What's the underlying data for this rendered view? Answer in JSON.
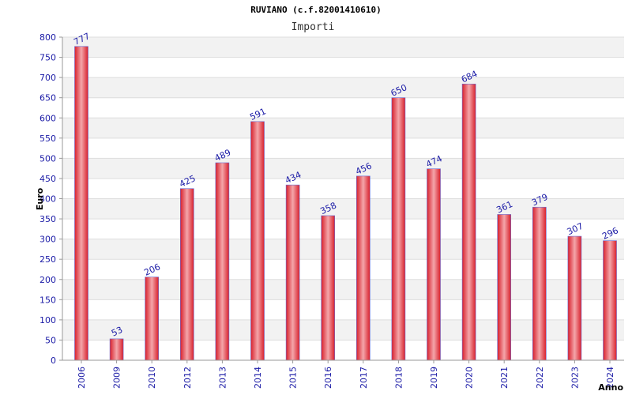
{
  "chart_data": {
    "type": "bar",
    "title": "RUVIANO (c.f.82001410610)",
    "subtitle": "Importi",
    "xlabel": "Anno",
    "ylabel": "Euro",
    "categories": [
      "2006",
      "2009",
      "2010",
      "2012",
      "2013",
      "2014",
      "2015",
      "2016",
      "2017",
      "2018",
      "2019",
      "2020",
      "2021",
      "2022",
      "2023",
      "2024"
    ],
    "values": [
      777,
      53,
      206,
      425,
      489,
      591,
      434,
      358,
      456,
      650,
      474,
      684,
      361,
      379,
      307,
      296
    ],
    "ylim": [
      0,
      800
    ],
    "ytick_step": 50,
    "grid": true,
    "legend": "none",
    "colors": {
      "bar_edge": "#d8202c",
      "bar_center": "#f4a6aa",
      "bar_outline": "#6a6ad0",
      "band_alt": "#f2f2f2",
      "grid": "#dddddd",
      "text": "#1a1aa6"
    }
  }
}
